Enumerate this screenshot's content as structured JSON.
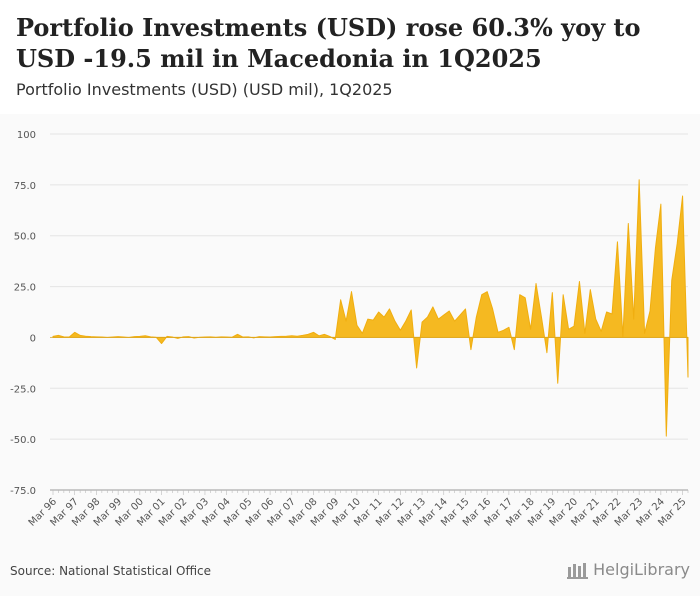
{
  "title": "Portfolio Investments (USD) rose 60.3% yoy to USD -19.5 mil in Macedonia in 1Q2025",
  "subtitle": "Portfolio Investments (USD) (USD mil), 1Q2025",
  "source": "Source: National Statistical Office",
  "brand": "HelgiLibrary",
  "colors": {
    "fill": "#f5b921",
    "stroke": "#f0ae10",
    "grid": "#e4e4e4",
    "axis": "#999999"
  },
  "chart_data": {
    "type": "area",
    "title": "Portfolio Investments (USD) (USD mil), 1Q2025",
    "xlabel": "",
    "ylabel": "USD mil",
    "ylim": [
      -75,
      100
    ],
    "yticks": [
      100,
      75,
      50,
      25,
      0,
      -25,
      -50,
      -75
    ],
    "ytick_labels": [
      "100",
      "75.0",
      "50.0",
      "25.0",
      "0",
      "-25.0",
      "-50.0",
      "-75.0"
    ],
    "xtick_labels": [
      "Mar 96",
      "Mar 97",
      "Mar 98",
      "Mar 99",
      "Mar 00",
      "Mar 01",
      "Mar 02",
      "Mar 03",
      "Mar 04",
      "Mar 05",
      "Mar 06",
      "Mar 07",
      "Mar 08",
      "Mar 09",
      "Mar 10",
      "Mar 11",
      "Mar 12",
      "Mar 13",
      "Mar 14",
      "Mar 15",
      "Mar 16",
      "Mar 17",
      "Mar 18",
      "Mar 19",
      "Mar 20",
      "Mar 21",
      "Mar 22",
      "Mar 23",
      "Mar 24",
      "Mar 25"
    ],
    "start_period": "1Q1996",
    "grid": true,
    "legend": "none",
    "values": [
      0.5,
      1.0,
      0.3,
      0.2,
      2.5,
      1.0,
      0.6,
      0.4,
      0.3,
      0.2,
      0.0,
      0.2,
      0.4,
      0.2,
      0.0,
      0.4,
      0.5,
      0.8,
      0.3,
      0.1,
      -3.0,
      0.5,
      0.2,
      -0.5,
      0.3,
      0.4,
      -0.3,
      0.1,
      0.2,
      0.3,
      0.1,
      0.3,
      0.2,
      0.1,
      1.5,
      0.2,
      0.3,
      -0.2,
      0.4,
      0.3,
      0.2,
      0.4,
      0.5,
      0.6,
      0.8,
      0.6,
      1.0,
      1.5,
      2.5,
      0.8,
      1.5,
      0.5,
      -1.0,
      18.5,
      8.0,
      22.5,
      6.0,
      2.0,
      9.0,
      8.5,
      12.5,
      10.0,
      14.0,
      8.0,
      3.5,
      8.0,
      13.5,
      -15.0,
      7.5,
      10.0,
      15.0,
      9.0,
      11.0,
      13.0,
      8.0,
      11.0,
      14.0,
      -6.0,
      10.0,
      21.0,
      22.5,
      14.0,
      2.5,
      3.5,
      5.0,
      -6.0,
      21.0,
      19.5,
      4.0,
      26.5,
      10.0,
      -7.5,
      22.0,
      -22.5,
      21.0,
      4.0,
      5.5,
      27.5,
      2.0,
      23.5,
      9.0,
      3.0,
      12.5,
      11.5,
      47.0,
      0.5,
      56.0,
      9.0,
      77.5,
      2.0,
      13.0,
      44.0,
      65.5,
      -48.5,
      28.0,
      46.0,
      69.5,
      -19.5
    ]
  }
}
